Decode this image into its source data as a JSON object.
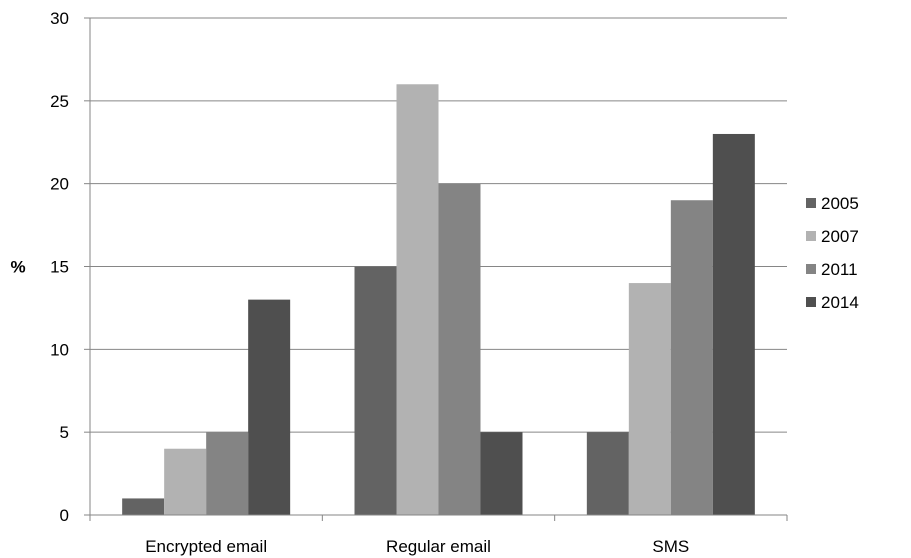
{
  "chart_data": {
    "type": "bar",
    "title": "",
    "xlabel": "",
    "ylabel": "%",
    "ylim": [
      0,
      30
    ],
    "yticks": [
      0,
      5,
      10,
      15,
      20,
      25,
      30
    ],
    "grid": true,
    "legend_position": "right",
    "categories": [
      "Encrypted email",
      "Regular email",
      "SMS"
    ],
    "series": [
      {
        "name": "2005",
        "color": "#636363",
        "values": [
          1,
          15,
          5
        ]
      },
      {
        "name": "2007",
        "color": "#b2b2b2",
        "values": [
          4,
          26,
          14
        ]
      },
      {
        "name": "2011",
        "color": "#848484",
        "values": [
          5,
          20,
          19
        ]
      },
      {
        "name": "2014",
        "color": "#4f4f4f",
        "values": [
          13,
          5,
          23
        ]
      }
    ]
  }
}
